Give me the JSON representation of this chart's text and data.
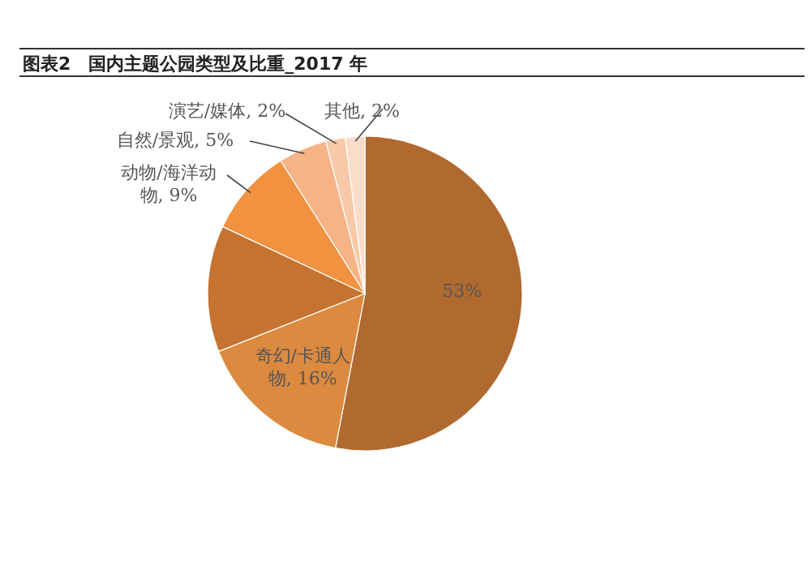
{
  "chart_data": {
    "type": "pie",
    "title": "图表2　国内主题公园类型及比重_2017 年",
    "categories": [
      null,
      "奇幻/卡通人物",
      null,
      "动物/海洋动物",
      "自然/景观",
      "演艺/媒体",
      "其他"
    ],
    "values": [
      53,
      16,
      13,
      9,
      5,
      2,
      2
    ],
    "value_labels": [
      "53%",
      "16%",
      null,
      "9%",
      "5%",
      "2%",
      "2%"
    ],
    "colors": [
      "#b0692f",
      "#dc8a40",
      "#c47330",
      "#f0923f",
      "#f5b386",
      "#f8c9a9",
      "#fbdcc9"
    ]
  }
}
